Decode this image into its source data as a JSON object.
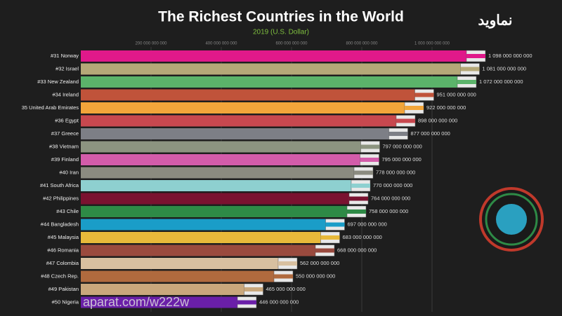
{
  "chart_data": {
    "type": "bar",
    "orientation": "horizontal",
    "title": "The Richest Countries in the World",
    "subtitle": "2019 (U.S. Dollar)",
    "categories": [
      "#31 Norway",
      "#32 Israel",
      "#33 New Zealand",
      "#34 Ireland",
      "35 United Arab Emirates",
      "#36 Egypt",
      "#37 Greece",
      "#38 Vietnam",
      "#39 Finland",
      "#40 Iran",
      "#41 South Africa",
      "#42 Philippines",
      "#43 Chile",
      "#44 Bangladesh",
      "#45 Malaysia",
      "#46 Romania",
      "#47 Colombia",
      "#48 Czech Rep.",
      "#49 Pakistan",
      "#50 Nigeria"
    ],
    "values": [
      1098000000000,
      1081000000000,
      1072000000000,
      951000000000,
      922000000000,
      898000000000,
      877000000000,
      797000000000,
      795000000000,
      778000000000,
      770000000000,
      764000000000,
      758000000000,
      697000000000,
      683000000000,
      668000000000,
      562000000000,
      550000000000,
      465000000000,
      446000000000
    ],
    "value_labels": [
      "1 098 000 000 000",
      "1 081 000 000 000",
      "1 072 000 000 000",
      "951 000 000 000",
      "922 000 000 000",
      "898 000 000 000",
      "877 000 000 000",
      "797 000 000 000",
      "795 000 000 000",
      "778 000 000 000",
      "770 000 000 000",
      "764 000 000 000",
      "758 000 000 000",
      "697 000 000 000",
      "683 000 000 000",
      "668 000 000 000",
      "562 000 000 000",
      "550 000 000 000",
      "465 000 000 000",
      "446 000 000 000"
    ],
    "colors": [
      "#e0198a",
      "#b5a878",
      "#5bb36a",
      "#c0533a",
      "#f2a53a",
      "#c8484f",
      "#7d7f86",
      "#8c9480",
      "#d35caa",
      "#8b8b80",
      "#8ed0d0",
      "#7a1230",
      "#2e8a46",
      "#1a9dc8",
      "#e8b93a",
      "#9a4a3e",
      "#d8c0a0",
      "#b06a3e",
      "#c9a77c",
      "#6a1fa8"
    ],
    "xlim": [
      0,
      1200000000000
    ],
    "xticks": [
      {
        "value": 200000000000,
        "label": "200 000 000 000"
      },
      {
        "value": 400000000000,
        "label": "400 000 000 000"
      },
      {
        "value": 600000000000,
        "label": "600 000 000 000"
      },
      {
        "value": 800000000000,
        "label": "800 000 000 000"
      },
      {
        "value": 1000000000000,
        "label": "1 000 000 000 000"
      }
    ],
    "grid": true
  },
  "watermark": "aparat.com/w222w",
  "logo": "نماوید"
}
